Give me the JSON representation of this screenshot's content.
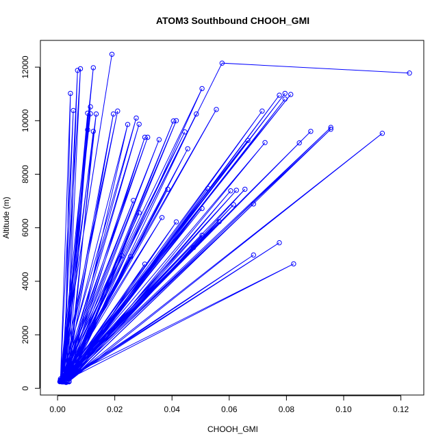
{
  "chart_data": {
    "type": "line",
    "title": "ATOM3 Southbound CHOOH_GMI",
    "xlabel": "CHOOH_GMI",
    "ylabel": "Altitude (m)",
    "xlim": [
      -0.006,
      0.128
    ],
    "ylim": [
      -250,
      13000
    ],
    "xticks": [
      0.0,
      0.02,
      0.04,
      0.06,
      0.08,
      0.1,
      0.12
    ],
    "xtick_labels": [
      "0.00",
      "0.02",
      "0.04",
      "0.06",
      "0.08",
      "0.10",
      "0.12"
    ],
    "yticks": [
      0,
      2000,
      4000,
      6000,
      8000,
      10000,
      12000
    ],
    "ytick_labels": [
      "0",
      "2000",
      "4000",
      "6000",
      "8000",
      "10000",
      "12000"
    ],
    "grid": false,
    "color": "#0000ff",
    "marker": "open-circle",
    "series": [
      {
        "x": [
          0.001,
          0.019,
          0.0008,
          0.0125,
          0.002,
          0.007,
          0.003,
          0.008,
          0.0015,
          0.0115,
          0.0025,
          0.0045,
          0.001,
          0.0055,
          0.002,
          0.0105,
          0.0035,
          0.0135,
          0.0012,
          0.0115,
          0.001,
          0.021,
          0.0018,
          0.0105,
          0.003,
          0.0195,
          0.002,
          0.0125,
          0.004,
          0.0245,
          0.0015,
          0.0285,
          0.0025,
          0.0275,
          0.001,
          0.0445,
          0.002,
          0.0305,
          0.003,
          0.0405,
          0.004,
          0.0505,
          0.0012,
          0.0555,
          0.002,
          0.0715,
          0.003,
          0.0775,
          0.0025,
          0.0795,
          0.002,
          0.0815,
          0.001,
          0.0665,
          0.003,
          0.0795,
          0.002,
          0.0955,
          0.004,
          0.1135,
          0.003,
          0.0955,
          0.002,
          0.0885,
          0.001,
          0.0845,
          0.002,
          0.0725,
          0.004,
          0.0605,
          0.003,
          0.0685,
          0.004,
          0.0655,
          0.001,
          0.0505,
          0.002,
          0.0305,
          0.004,
          0.0225,
          0.003,
          0.0255,
          0.002,
          0.0285,
          0.001,
          0.0365,
          0.002,
          0.0415,
          0.003,
          0.0525,
          0.004,
          0.0615,
          0.002,
          0.0505,
          0.0015,
          0.0625,
          0.003,
          0.0685,
          0.002,
          0.0475,
          0.003,
          0.0775,
          0.002,
          0.0825,
          0.001,
          0.0565,
          0.002,
          0.0385,
          0.003,
          0.0455,
          0.002,
          0.0265,
          0.001,
          0.0315,
          0.002,
          0.0355,
          0.003,
          0.0415,
          0.004,
          0.0485,
          0.002,
          0.0575,
          0.123
        ],
        "y": [
          350,
          12480,
          250,
          11980,
          300,
          11880,
          220,
          11940,
          280,
          10520,
          260,
          11020,
          300,
          10380,
          250,
          9660,
          270,
          10250,
          300,
          10260,
          260,
          10360,
          240,
          10280,
          270,
          10250,
          290,
          9600,
          260,
          9860,
          240,
          9870,
          280,
          10100,
          300,
          9580,
          260,
          9380,
          240,
          9990,
          270,
          11200,
          280,
          10420,
          250,
          10360,
          240,
          10950,
          260,
          11020,
          300,
          10980,
          280,
          9260,
          250,
          10810,
          240,
          9680,
          260,
          9530,
          250,
          9750,
          290,
          9600,
          260,
          9170,
          240,
          9180,
          270,
          7380,
          280,
          6890,
          250,
          7440,
          260,
          5720,
          270,
          4640,
          250,
          4950,
          240,
          4920,
          260,
          6560,
          300,
          6380,
          280,
          6220,
          250,
          7470,
          270,
          6860,
          240,
          6720,
          260,
          7400,
          280,
          4980,
          260,
          5260,
          270,
          5440,
          250,
          4650,
          300,
          6230,
          240,
          7440,
          260,
          8950,
          290,
          7020,
          260,
          9380,
          240,
          9290,
          280,
          10000,
          250,
          10250,
          260,
          12150,
          11780
        ]
      }
    ]
  }
}
